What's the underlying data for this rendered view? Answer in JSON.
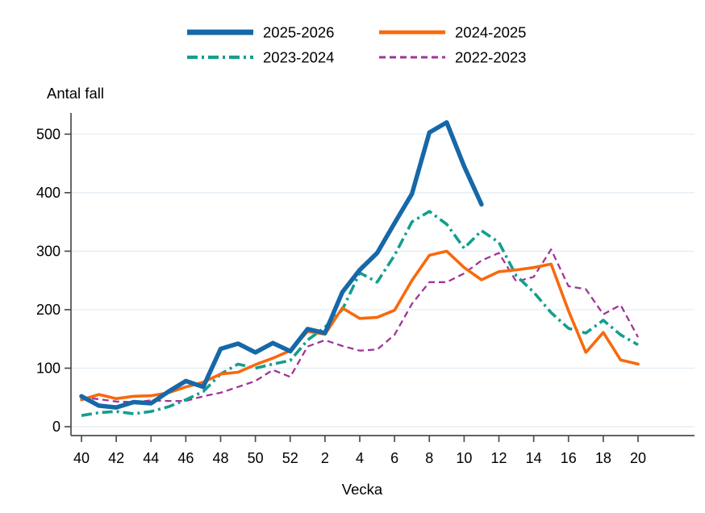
{
  "page": {
    "background": "#ffffff"
  },
  "chart_data": {
    "type": "line",
    "title": "",
    "ylabel": "Antal fall",
    "xlabel": "Vecka",
    "x_labels": [
      "40",
      "41",
      "42",
      "43",
      "44",
      "45",
      "46",
      "47",
      "48",
      "49",
      "50",
      "51",
      "52",
      "1",
      "2",
      "3",
      "4",
      "5",
      "6",
      "7",
      "8",
      "9",
      "10",
      "11",
      "12",
      "13",
      "14",
      "15",
      "16",
      "17",
      "18",
      "19",
      "20"
    ],
    "x_tick_labels": [
      "40",
      "42",
      "44",
      "46",
      "48",
      "50",
      "52",
      "2",
      "4",
      "6",
      "8",
      "10",
      "12",
      "14",
      "16",
      "18",
      "20"
    ],
    "yticks": [
      0,
      100,
      200,
      300,
      400,
      500
    ],
    "ylim": [
      0,
      550
    ],
    "grid": "horizontal",
    "legend_position": "top",
    "axis_color": "#4d4d4d",
    "grid_color": "#e2ecf3",
    "text_color": "#000000",
    "series": [
      {
        "name": "2025-2026",
        "color": "#1668A8",
        "line_style": "solid",
        "line_width": 5.5,
        "values": [
          52,
          36,
          33,
          42,
          40,
          60,
          78,
          68,
          133,
          142,
          127,
          143,
          129,
          167,
          160,
          230,
          268,
          297,
          348,
          398,
          503,
          520,
          445,
          380,
          null,
          null,
          null,
          null,
          null,
          null,
          null,
          null,
          null
        ]
      },
      {
        "name": "2024-2025",
        "color": "#F8690D",
        "line_style": "solid",
        "line_width": 3.6,
        "values": [
          46,
          55,
          48,
          52,
          53,
          58,
          68,
          76,
          90,
          93,
          106,
          117,
          130,
          163,
          158,
          203,
          185,
          187,
          199,
          250,
          293,
          300,
          272,
          251,
          265,
          268,
          272,
          278,
          198,
          127,
          161,
          114,
          107
        ]
      },
      {
        "name": "2023-2024",
        "color": "#149E8C",
        "line_style": "dash-dot",
        "line_width": 3.6,
        "values": [
          19,
          24,
          26,
          22,
          26,
          34,
          46,
          60,
          90,
          107,
          100,
          107,
          113,
          148,
          170,
          200,
          263,
          247,
          293,
          350,
          368,
          346,
          305,
          335,
          315,
          258,
          230,
          195,
          168,
          160,
          182,
          157,
          140
        ]
      },
      {
        "name": "2022-2023",
        "color": "#A03598",
        "line_style": "dashed",
        "line_width": 2.3,
        "values": [
          50,
          47,
          43,
          42,
          45,
          44,
          44,
          52,
          58,
          68,
          78,
          97,
          85,
          137,
          148,
          138,
          130,
          132,
          157,
          210,
          247,
          247,
          262,
          284,
          297,
          248,
          256,
          303,
          240,
          235,
          192,
          208,
          153
        ]
      }
    ]
  }
}
